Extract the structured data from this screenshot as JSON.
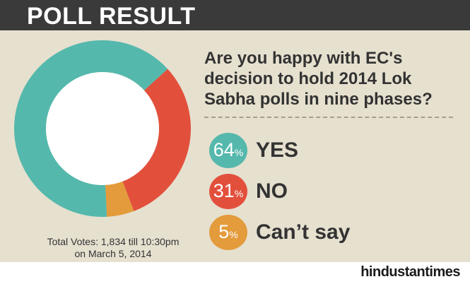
{
  "header": {
    "title": "POLL RESULT"
  },
  "question": "Are you happy with EC's decision to hold 2014 Lok Sabha polls in nine phases?",
  "total_votes": {
    "line1": "Total Votes: 1,834 till 10:30pm",
    "line2": "on March 5, 2014"
  },
  "results": [
    {
      "value": "64",
      "unit": "%",
      "label": "YES",
      "color": "#55b8ac"
    },
    {
      "value": "31",
      "unit": "%",
      "label": "NO",
      "color": "#e2503c"
    },
    {
      "value": "5",
      "unit": "%",
      "label": "Can’t say",
      "color": "#e39b3b"
    }
  ],
  "colors": {
    "background": "#e6e0cf",
    "header": "#3a3a3a",
    "divider": "#a69f8e"
  },
  "logo": "hindustantimes",
  "chart_data": {
    "type": "pie",
    "style": "donut",
    "categories": [
      "YES",
      "NO",
      "Can’t say"
    ],
    "values": [
      64,
      31,
      5
    ],
    "colors": [
      "#55b8ac",
      "#e2503c",
      "#e39b3b"
    ],
    "legend": "right"
  }
}
